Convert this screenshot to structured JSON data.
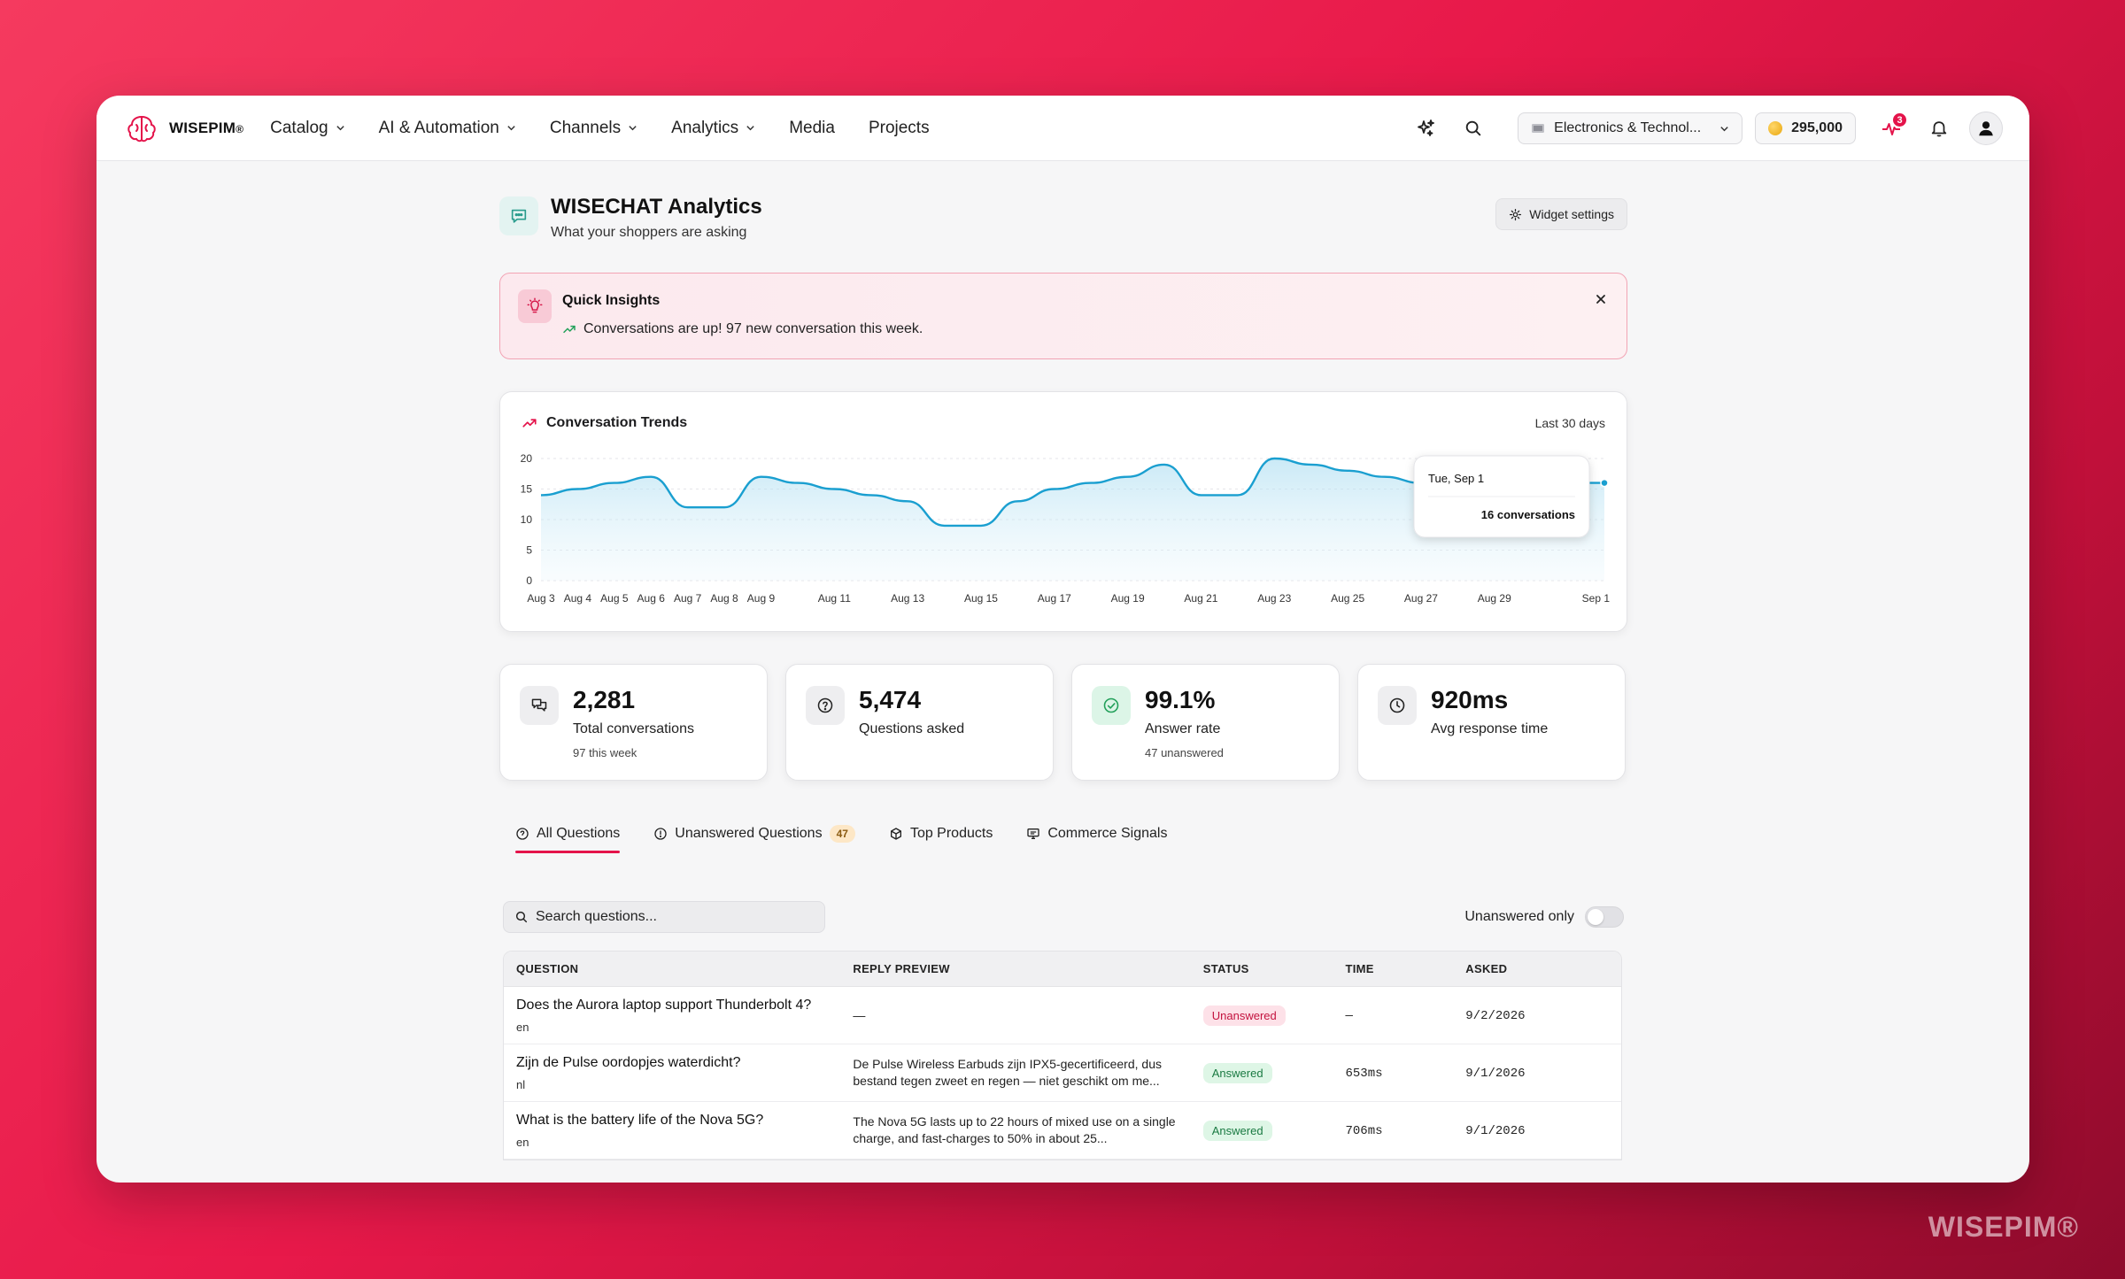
{
  "brand": {
    "name": "WISEPIM",
    "reg": "®",
    "watermark": "WISEPIM®"
  },
  "nav": [
    {
      "label": "Catalog",
      "dropdown": true
    },
    {
      "label": "AI & Automation",
      "dropdown": true
    },
    {
      "label": "Channels",
      "dropdown": true
    },
    {
      "label": "Analytics",
      "dropdown": true
    },
    {
      "label": "Media",
      "dropdown": false
    },
    {
      "label": "Projects",
      "dropdown": false
    }
  ],
  "topbar": {
    "store": "Electronics & Technol...",
    "credits": "295,000",
    "activity_badge": "3"
  },
  "page": {
    "title": "WISECHAT Analytics",
    "subtitle": "What your shoppers are asking",
    "widget_settings": "Widget settings"
  },
  "insights": {
    "title": "Quick Insights",
    "message": "Conversations are up! 97 new conversation this week."
  },
  "trend": {
    "title": "Conversation Trends",
    "range": "Last 30 days",
    "tooltip": {
      "date": "Tue, Sep 1",
      "value": "16 conversations"
    }
  },
  "chart_data": {
    "type": "area",
    "title": "Conversation Trends",
    "xlabel": "",
    "ylabel": "",
    "ylim": [
      0,
      20
    ],
    "yticks": [
      0,
      5,
      10,
      15,
      20
    ],
    "x": [
      "Aug 3",
      "Aug 4",
      "Aug 5",
      "Aug 6",
      "Aug 7",
      "Aug 8",
      "Aug 9",
      "Aug 10",
      "Aug 11",
      "Aug 12",
      "Aug 13",
      "Aug 14",
      "Aug 15",
      "Aug 16",
      "Aug 17",
      "Aug 18",
      "Aug 19",
      "Aug 20",
      "Aug 21",
      "Aug 22",
      "Aug 23",
      "Aug 24",
      "Aug 25",
      "Aug 26",
      "Aug 27",
      "Aug 28",
      "Aug 29",
      "Aug 30",
      "Aug 31",
      "Sep 1"
    ],
    "xtick_labels": [
      "Aug 3",
      "Aug 4",
      "Aug 5",
      "Aug 6",
      "Aug 7",
      "Aug 8",
      "Aug 9",
      "Aug 11",
      "Aug 13",
      "Aug 15",
      "Aug 17",
      "Aug 19",
      "Aug 21",
      "Aug 23",
      "Aug 25",
      "Aug 27",
      "Aug 29",
      "Sep 1"
    ],
    "values": [
      14,
      15,
      16,
      17,
      12,
      12,
      17,
      16,
      15,
      14,
      13,
      9,
      9,
      13,
      15,
      16,
      17,
      19,
      14,
      14,
      20,
      19,
      18,
      17,
      16,
      15,
      16,
      16,
      16,
      16
    ],
    "grid": true,
    "color": "#1a9fd0"
  },
  "stats": [
    {
      "value": "2,281",
      "label": "Total conversations",
      "sub": "97 this week",
      "icon": "chat-bubbles-icon"
    },
    {
      "value": "5,474",
      "label": "Questions asked",
      "sub": "",
      "icon": "question-circle-icon"
    },
    {
      "value": "99.1%",
      "label": "Answer rate",
      "sub": "47 unanswered",
      "icon": "check-circle-icon"
    },
    {
      "value": "920ms",
      "label": "Avg response time",
      "sub": "",
      "icon": "clock-icon"
    }
  ],
  "tabs": [
    {
      "label": "All Questions",
      "active": true
    },
    {
      "label": "Unanswered Questions",
      "count": "47"
    },
    {
      "label": "Top Products"
    },
    {
      "label": "Commerce Signals"
    }
  ],
  "filters": {
    "search_placeholder": "Search questions...",
    "toggle_label": "Unanswered only"
  },
  "table": {
    "headers": [
      "QUESTION",
      "REPLY PREVIEW",
      "STATUS",
      "TIME",
      "ASKED"
    ],
    "rows": [
      {
        "question": "Does the Aurora laptop support Thunderbolt 4?",
        "lang": "en",
        "reply": "—",
        "status": "Unanswered",
        "time": "—",
        "asked": "9/2/2026"
      },
      {
        "question": "Zijn de Pulse oordopjes waterdicht?",
        "lang": "nl",
        "reply": "De Pulse Wireless Earbuds zijn IPX5-gecertificeerd, dus bestand tegen zweet en regen — niet geschikt om me...",
        "status": "Answered",
        "time": "653ms",
        "asked": "9/1/2026"
      },
      {
        "question": "What is the battery life of the Nova 5G?",
        "lang": "en",
        "reply": "The Nova 5G lasts up to 22 hours of mixed use on a single charge, and fast-charges to 50% in about 25...",
        "status": "Answered",
        "time": "706ms",
        "asked": "9/1/2026"
      }
    ]
  },
  "colors": {
    "accent": "#e4134a",
    "line": "#1a9fd0",
    "answered": "#1a7a42",
    "unanswered": "#c3123e"
  }
}
